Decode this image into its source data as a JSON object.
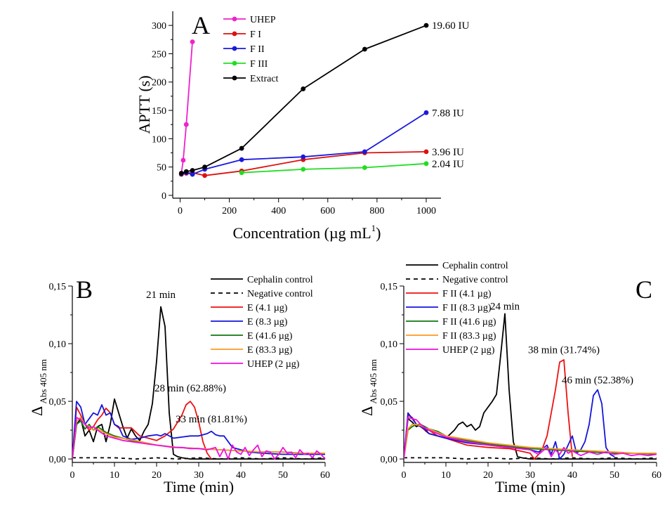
{
  "chart_data": [
    {
      "panel_label": "A",
      "type": "line",
      "xlabel": "Concentration (µg mL",
      "xlabel_sup": "1",
      "xlabel_close": ")",
      "ylabel": "APTT (s)",
      "xlim": [
        -30,
        1060
      ],
      "ylim": [
        -5,
        325
      ],
      "xticks": [
        0,
        200,
        400,
        600,
        800,
        1000
      ],
      "yticks": [
        0,
        50,
        100,
        150,
        200,
        250,
        300
      ],
      "legend_position": "top-left",
      "series": [
        {
          "name": "UHEP",
          "color": "#ee22cc",
          "x": [
            5,
            12.5,
            25,
            50
          ],
          "y": [
            39,
            62,
            125,
            271
          ]
        },
        {
          "name": "F I",
          "color": "#dd1111",
          "x": [
            5,
            25,
            50,
            100,
            250,
            500,
            750,
            1000
          ],
          "y": [
            37,
            39,
            40,
            35,
            43,
            63,
            75,
            77
          ]
        },
        {
          "name": "F II",
          "color": "#1a1add",
          "x": [
            5,
            25,
            50,
            100,
            250,
            500,
            750,
            1000
          ],
          "y": [
            38,
            40,
            37,
            46,
            63,
            68,
            77,
            146
          ]
        },
        {
          "name": "F III",
          "color": "#22dd22",
          "x": [
            250,
            500,
            750,
            1000
          ],
          "y": [
            40,
            46,
            49,
            56
          ]
        },
        {
          "name": "Extract",
          "color": "#000000",
          "x": [
            5,
            25,
            50,
            100,
            250,
            500,
            750,
            1000
          ],
          "y": [
            39,
            42,
            44,
            50,
            83,
            188,
            258,
            300
          ]
        }
      ],
      "end_labels": [
        {
          "text": "19.60 IU",
          "x": 1000,
          "y": 300
        },
        {
          "text": "7.88 IU",
          "x": 1000,
          "y": 146
        },
        {
          "text": "3.96 IU",
          "x": 1000,
          "y": 77
        },
        {
          "text": "2.04 IU",
          "x": 1000,
          "y": 56
        }
      ]
    },
    {
      "panel_label": "B",
      "type": "line",
      "xlabel": "Time (min)",
      "ylabel": "Δ",
      "ylabel_sub": "Abs 405 nm",
      "xlim": [
        0,
        60
      ],
      "ylim": [
        -0.003,
        0.15
      ],
      "xticks": [
        0,
        10,
        20,
        30,
        40,
        50,
        60
      ],
      "yticks": [
        0.0,
        0.05,
        0.1,
        0.15
      ],
      "ytick_labels": [
        "0,00",
        "0,05",
        "0,10",
        "0,15"
      ],
      "legend_position": "top-right",
      "series": [
        {
          "name": "Cephalin control",
          "color": "#000000",
          "dash": false,
          "x": [
            0,
            1,
            2,
            3,
            4,
            5,
            6,
            7,
            8,
            9,
            10,
            11,
            12,
            13,
            14,
            15,
            16,
            17,
            18,
            19,
            20,
            21,
            22,
            23,
            24,
            25,
            26,
            28,
            30,
            35,
            40,
            50,
            60
          ],
          "y": [
            0,
            0.03,
            0.035,
            0.02,
            0.025,
            0.015,
            0.028,
            0.03,
            0.015,
            0.03,
            0.052,
            0.04,
            0.028,
            0.018,
            0.026,
            0.02,
            0.016,
            0.024,
            0.03,
            0.048,
            0.085,
            0.132,
            0.115,
            0.04,
            0.004,
            0.002,
            0.001,
            0,
            0,
            0,
            0,
            0,
            0
          ]
        },
        {
          "name": "Negative control",
          "color": "#000000",
          "dash": true,
          "x": [
            0,
            5,
            10,
            15,
            20,
            25,
            30,
            35,
            40,
            45,
            50,
            55,
            60
          ],
          "y": [
            0.001,
            0.001,
            0.001,
            0,
            0.001,
            0,
            0.001,
            0,
            0.001,
            0,
            0.001,
            0,
            0.001
          ]
        },
        {
          "name": "E (4.1 µg)",
          "color": "#ee1111",
          "dash": false,
          "x": [
            0,
            1,
            2,
            3,
            4,
            5,
            6,
            7,
            8,
            9,
            10,
            11,
            12,
            14,
            16,
            18,
            20,
            22,
            24,
            26,
            27,
            28,
            29,
            30,
            31,
            32,
            33
          ],
          "y": [
            0,
            0.045,
            0.038,
            0.03,
            0.025,
            0.028,
            0.034,
            0.038,
            0.044,
            0.04,
            0.03,
            0.027,
            0.027,
            0.027,
            0.02,
            0.018,
            0.016,
            0.02,
            0.026,
            0.038,
            0.047,
            0.05,
            0.045,
            0.032,
            0.015,
            0.005,
            0
          ]
        },
        {
          "name": "E (8.3 µg)",
          "color": "#1515dd",
          "dash": false,
          "x": [
            0,
            1,
            2,
            3,
            4,
            5,
            6,
            7,
            8,
            9,
            10,
            11,
            12,
            14,
            16,
            18,
            20,
            21,
            22,
            24,
            26,
            28,
            30,
            32,
            33,
            34,
            35,
            36,
            38,
            40,
            42,
            45,
            50,
            55,
            60
          ],
          "y": [
            0,
            0.05,
            0.045,
            0.03,
            0.035,
            0.04,
            0.038,
            0.047,
            0.038,
            0.04,
            0.03,
            0.028,
            0.02,
            0.017,
            0.018,
            0.02,
            0.021,
            0.02,
            0.022,
            0.018,
            0.019,
            0.02,
            0.02,
            0.022,
            0.024,
            0.021,
            0.02,
            0.02,
            0.01,
            0.008,
            0.006,
            0.005,
            0.004,
            0.004,
            0.004
          ]
        },
        {
          "name": "E (41.6 µg)",
          "color": "#117711",
          "dash": false,
          "x": [
            0,
            1,
            2,
            3,
            4,
            5,
            6,
            8,
            10,
            15,
            20,
            25,
            30,
            35,
            40,
            45,
            50,
            55,
            60
          ],
          "y": [
            0,
            0.03,
            0.033,
            0.026,
            0.03,
            0.025,
            0.028,
            0.023,
            0.02,
            0.015,
            0.012,
            0.01,
            0.009,
            0.008,
            0.007,
            0.006,
            0.006,
            0.005,
            0.005
          ]
        },
        {
          "name": "E (83.3 µg)",
          "color": "#ff9922",
          "dash": false,
          "x": [
            0,
            1,
            2,
            3,
            4,
            5,
            6,
            8,
            10,
            15,
            20,
            25,
            30,
            35,
            40,
            45,
            50,
            55,
            60
          ],
          "y": [
            0,
            0.033,
            0.036,
            0.03,
            0.028,
            0.025,
            0.026,
            0.022,
            0.019,
            0.016,
            0.012,
            0.01,
            0.009,
            0.008,
            0.007,
            0.006,
            0.006,
            0.005,
            0.005
          ]
        },
        {
          "name": "UHEP (2 µg)",
          "color": "#ee11dd",
          "dash": false,
          "x": [
            0,
            1,
            2,
            3,
            4,
            5,
            6,
            8,
            10,
            12,
            14,
            16,
            18,
            20,
            22,
            24,
            26,
            28,
            30,
            32,
            34,
            35,
            36,
            37,
            38,
            39,
            40,
            41,
            42,
            43,
            44,
            45,
            46,
            47,
            48,
            49,
            50,
            51,
            52,
            53,
            54,
            55,
            56,
            57,
            58,
            59,
            60
          ],
          "y": [
            0,
            0.036,
            0.034,
            0.03,
            0.027,
            0.028,
            0.025,
            0.02,
            0.018,
            0.016,
            0.015,
            0.014,
            0.013,
            0.012,
            0.011,
            0.01,
            0.01,
            0.009,
            0.009,
            0.008,
            0.01,
            0.002,
            0.009,
            0.0,
            0.012,
            0.006,
            0.004,
            0.01,
            0.003,
            0.008,
            0.012,
            0.002,
            0.007,
            0.006,
            0.0,
            0.004,
            0.01,
            0.005,
            0.006,
            0.001,
            0.008,
            0.004,
            0.005,
            0.001,
            0.007,
            0.004,
            0.0
          ]
        }
      ],
      "annotations": [
        {
          "text": "21 min",
          "x": 21,
          "y": 0.136
        },
        {
          "text": "28 min (62.88%)",
          "x": 28,
          "y": 0.055
        },
        {
          "text": "33 min (81.81%)",
          "x": 33,
          "y": 0.028
        }
      ]
    },
    {
      "panel_label": "C",
      "type": "line",
      "xlabel": "Time (min)",
      "ylabel": "Δ",
      "ylabel_sub": "Abs 405 nm",
      "xlim": [
        0,
        60
      ],
      "ylim": [
        -0.003,
        0.15
      ],
      "xticks": [
        0,
        10,
        20,
        30,
        40,
        50,
        60
      ],
      "yticks": [
        0.0,
        0.05,
        0.1,
        0.15
      ],
      "ytick_labels": [
        "0,00",
        "0,05",
        "0,10",
        "0,15"
      ],
      "legend_position": "top-left",
      "series": [
        {
          "name": "Cephalin control",
          "color": "#000000",
          "dash": false,
          "x": [
            0,
            1,
            2,
            3,
            4,
            5,
            6,
            8,
            10,
            12,
            13,
            14,
            15,
            16,
            17,
            18,
            19,
            20,
            21,
            22,
            23,
            24,
            25,
            26,
            27,
            28,
            30,
            35,
            40,
            50,
            60
          ],
          "y": [
            0,
            0.035,
            0.032,
            0.028,
            0.03,
            0.025,
            0.022,
            0.02,
            0.018,
            0.025,
            0.03,
            0.032,
            0.028,
            0.03,
            0.025,
            0.028,
            0.04,
            0.045,
            0.05,
            0.056,
            0.09,
            0.126,
            0.06,
            0.015,
            0.002,
            0.001,
            0,
            0,
            0,
            0,
            0
          ]
        },
        {
          "name": "Negative control",
          "color": "#000000",
          "dash": true,
          "x": [
            0,
            5,
            10,
            15,
            20,
            25,
            30,
            35,
            40,
            45,
            50,
            55,
            60
          ],
          "y": [
            0.001,
            0.001,
            0.001,
            0,
            0.001,
            0,
            0.001,
            0,
            0.001,
            0,
            0.001,
            0,
            0.001
          ]
        },
        {
          "name": "F II (4.1 µg)",
          "color": "#ee1111",
          "dash": false,
          "x": [
            0,
            1,
            2,
            3,
            4,
            5,
            6,
            8,
            10,
            15,
            20,
            25,
            30,
            31,
            32,
            33,
            34,
            35,
            36,
            37,
            38,
            39,
            40
          ],
          "y": [
            0,
            0.038,
            0.036,
            0.03,
            0.028,
            0.025,
            0.025,
            0.02,
            0.018,
            0.012,
            0.01,
            0.009,
            0.005,
            0.0,
            0.004,
            0.01,
            0.02,
            0.04,
            0.06,
            0.084,
            0.086,
            0.04,
            0.002
          ]
        },
        {
          "name": "F II (8.3 µg)",
          "color": "#1515dd",
          "dash": false,
          "x": [
            0,
            1,
            2,
            3,
            4,
            5,
            6,
            8,
            10,
            15,
            20,
            25,
            30,
            32,
            34,
            35,
            36,
            37,
            38,
            39,
            40,
            41,
            42,
            43,
            44,
            45,
            46,
            47,
            48,
            49,
            50
          ],
          "y": [
            0,
            0.04,
            0.035,
            0.03,
            0.028,
            0.026,
            0.022,
            0.02,
            0.018,
            0.014,
            0.012,
            0.01,
            0.008,
            0.006,
            0.012,
            0.004,
            0.015,
            0.0,
            0.004,
            0.012,
            0.02,
            0.005,
            0.008,
            0.015,
            0.03,
            0.055,
            0.06,
            0.048,
            0.01,
            0.004,
            0.002
          ]
        },
        {
          "name": "F II (41.6 µg)",
          "color": "#117711",
          "dash": false,
          "x": [
            0,
            1,
            2,
            3,
            4,
            5,
            6,
            8,
            10,
            15,
            20,
            25,
            30,
            35,
            40,
            45,
            50,
            55,
            60
          ],
          "y": [
            0,
            0.025,
            0.028,
            0.03,
            0.03,
            0.028,
            0.026,
            0.024,
            0.02,
            0.016,
            0.013,
            0.011,
            0.009,
            0.008,
            0.007,
            0.006,
            0.005,
            0.005,
            0.004
          ]
        },
        {
          "name": "F II (83.3 µg)",
          "color": "#ff9922",
          "dash": false,
          "x": [
            0,
            1,
            2,
            3,
            4,
            5,
            6,
            8,
            10,
            15,
            20,
            25,
            30,
            35,
            40,
            45,
            50,
            55,
            60
          ],
          "y": [
            0,
            0.026,
            0.03,
            0.03,
            0.029,
            0.027,
            0.026,
            0.023,
            0.02,
            0.017,
            0.014,
            0.012,
            0.01,
            0.009,
            0.008,
            0.007,
            0.006,
            0.005,
            0.005
          ]
        },
        {
          "name": "UHEP (2 µg)",
          "color": "#ee11dd",
          "dash": false,
          "x": [
            0,
            1,
            2,
            3,
            4,
            5,
            6,
            8,
            10,
            15,
            20,
            25,
            30,
            32,
            34,
            35,
            36,
            37,
            38,
            39,
            40,
            42,
            44,
            46,
            48,
            50,
            52,
            54,
            56,
            58,
            60
          ],
          "y": [
            0,
            0.036,
            0.035,
            0.034,
            0.03,
            0.027,
            0.025,
            0.022,
            0.019,
            0.015,
            0.012,
            0.01,
            0.008,
            0.004,
            0.01,
            0.002,
            0.008,
            0.004,
            0.01,
            0.005,
            0.007,
            0.003,
            0.006,
            0.004,
            0.006,
            0.004,
            0.005,
            0.003,
            0.004,
            0.003,
            0.004
          ]
        }
      ],
      "annotations": [
        {
          "text": "24 min",
          "x": 24,
          "y": 0.126
        },
        {
          "text": "38 min (31.74%)",
          "x": 38,
          "y": 0.088
        },
        {
          "text": "46 min (52.38%)",
          "x": 46,
          "y": 0.062
        }
      ]
    }
  ]
}
